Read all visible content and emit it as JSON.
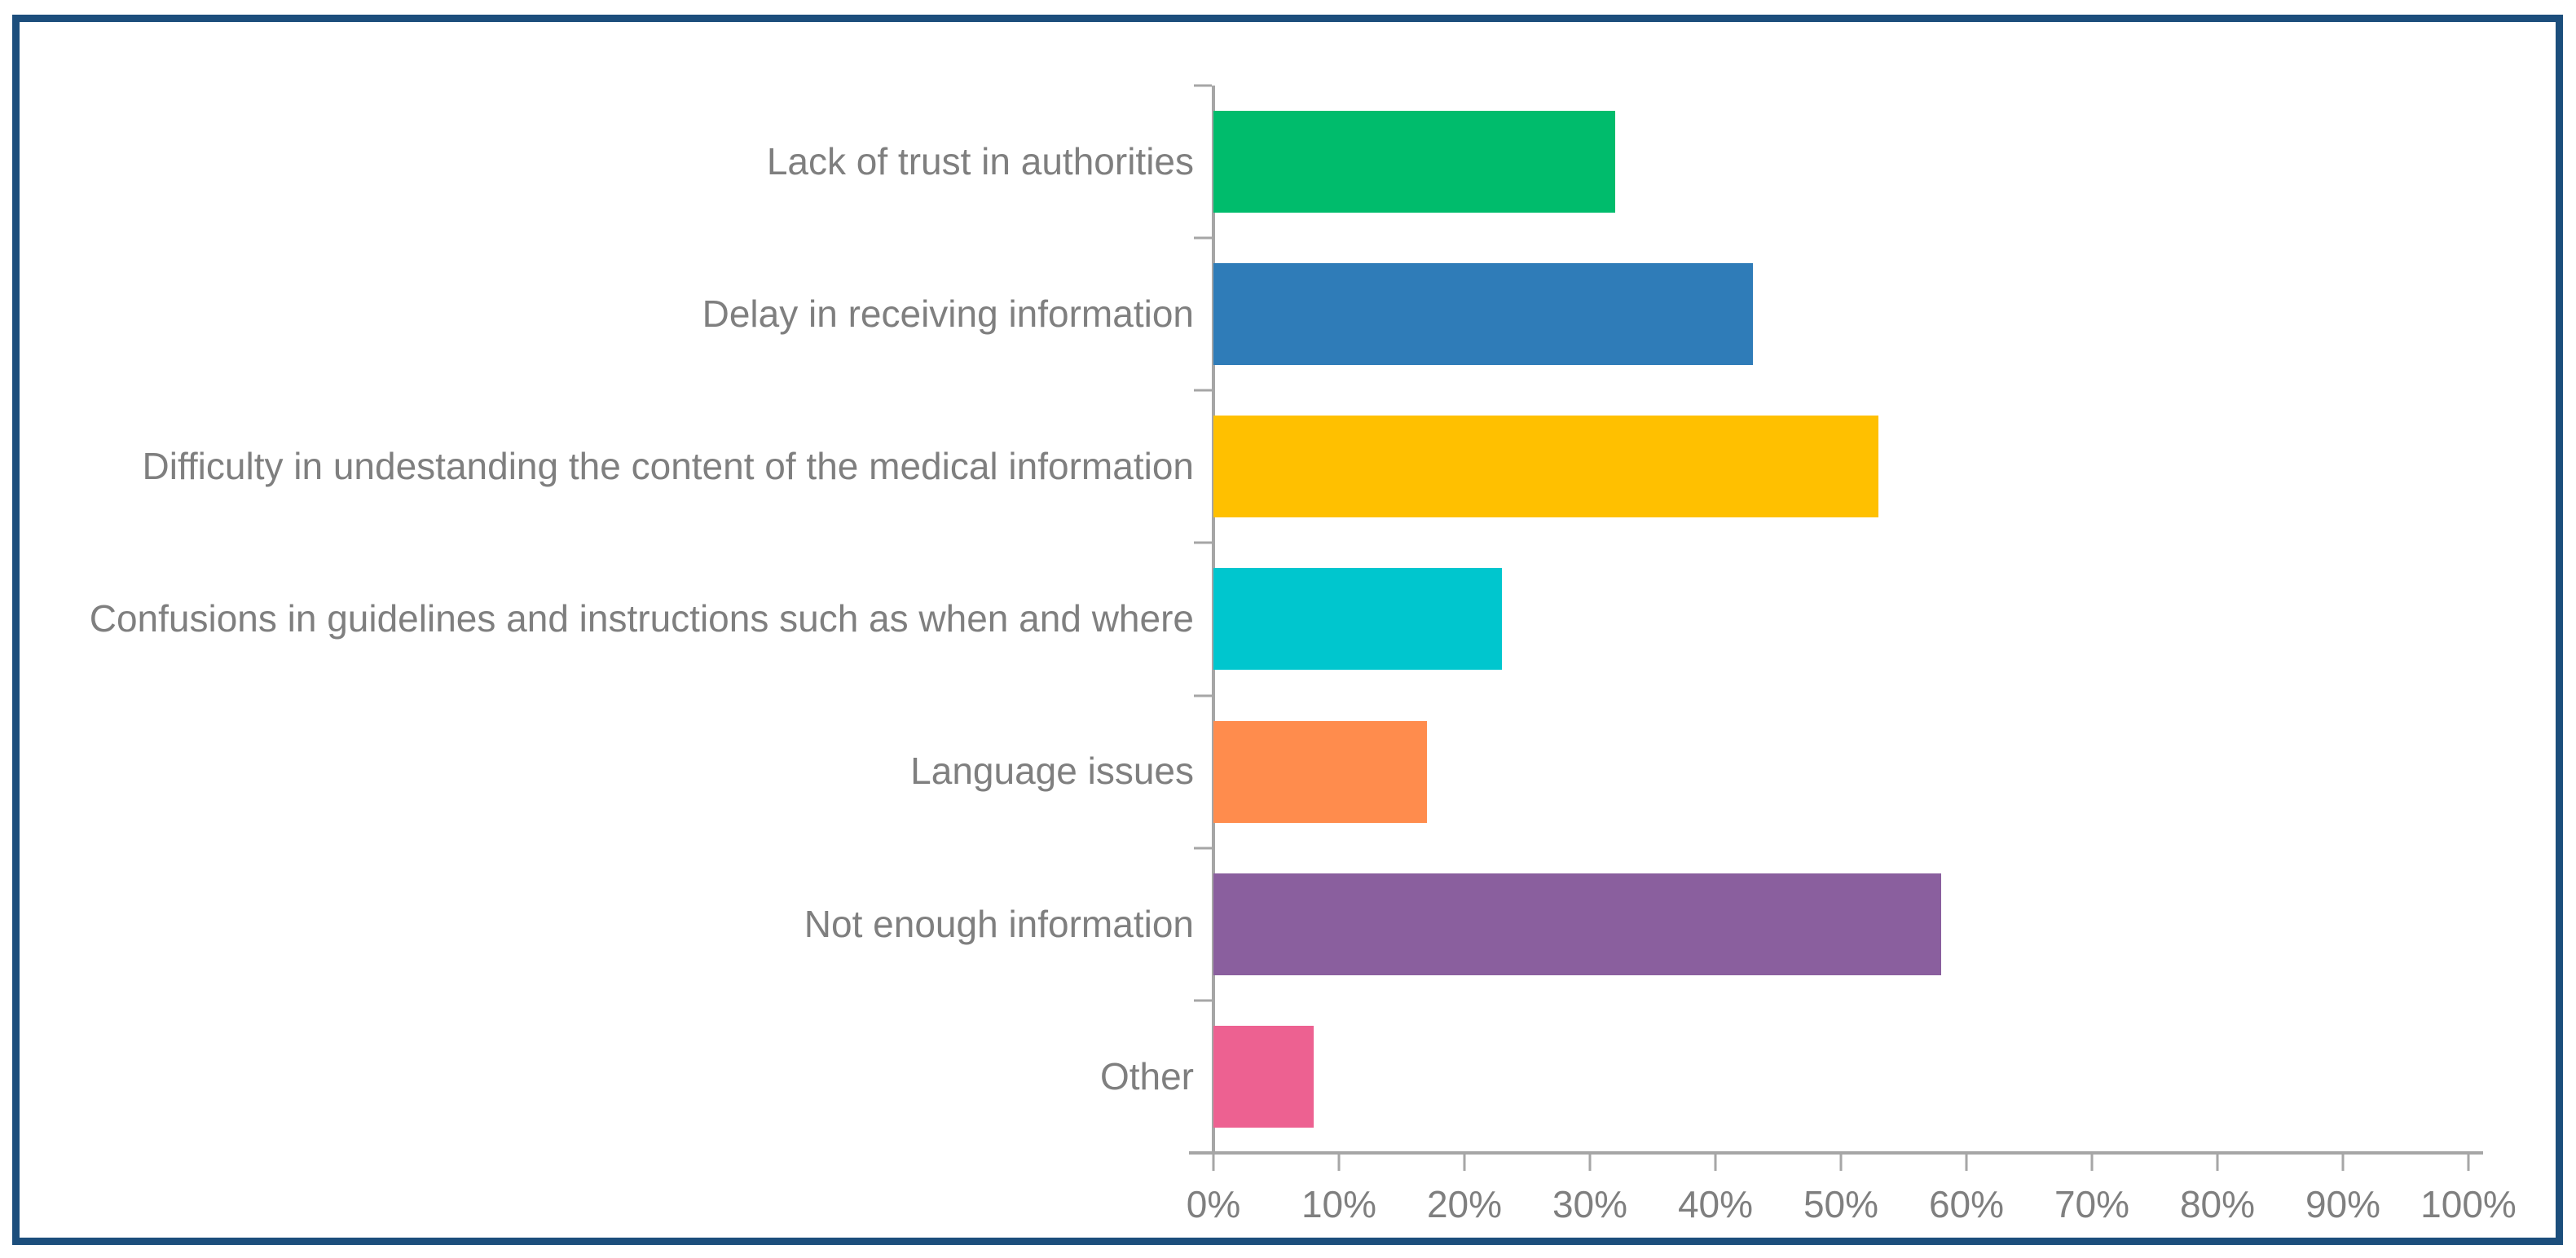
{
  "chart_data": {
    "type": "bar",
    "orientation": "horizontal",
    "title": "",
    "xlabel": "",
    "ylabel": "",
    "categories": [
      "Lack of trust in authorities",
      "Delay in receiving information",
      "Difficulty in undestanding the content of the medical information",
      "Confusions in guidelines and instructions such as when and where",
      "Language issues",
      "Not enough information",
      "Other"
    ],
    "values": [
      32,
      43,
      53,
      23,
      17,
      58,
      8
    ],
    "value_unit": "%",
    "series_colors": [
      "#00bc6c",
      "#2f7cb8",
      "#ffc000",
      "#00c6ce",
      "#ff8c4d",
      "#8a5f9e",
      "#ed6191"
    ],
    "x_ticks": [
      "0%",
      "10%",
      "20%",
      "30%",
      "40%",
      "50%",
      "60%",
      "70%",
      "80%",
      "90%",
      "100%"
    ],
    "xlim": [
      0,
      100
    ],
    "grid": "off",
    "legend": "none",
    "axis_color": "#a6a6a6",
    "text_color": "#7f7f7f",
    "frame_border_color": "#1c4e7c"
  }
}
